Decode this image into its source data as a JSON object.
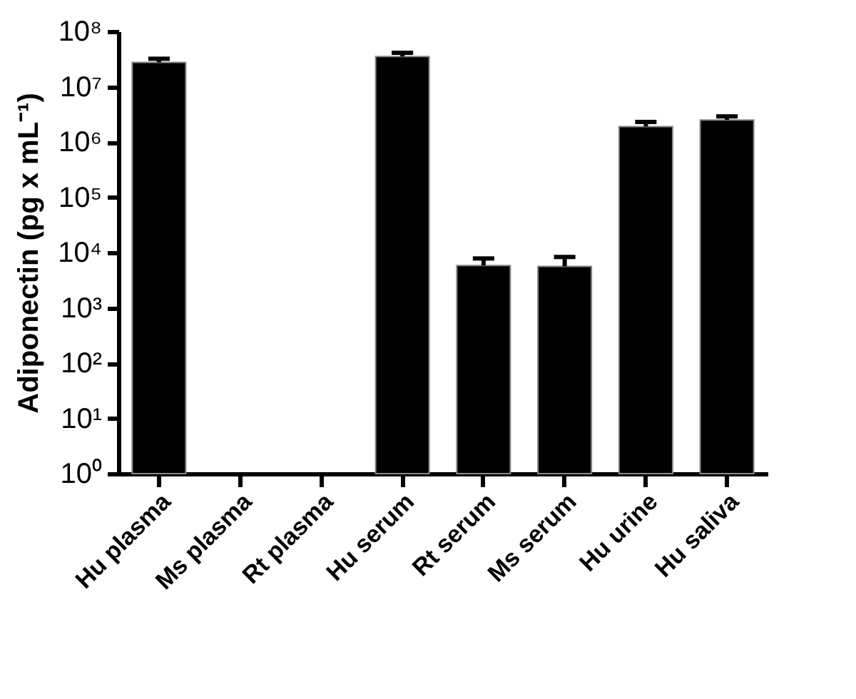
{
  "chart_data": {
    "type": "bar",
    "ylabel": "Adiponectin (pg x mL⁻¹)",
    "categories": [
      "Hu plasma",
      "Ms plasma",
      "Rt plasma",
      "Hu serum",
      "Rt serum",
      "Ms serum",
      "Hu urine",
      "Hu saliva"
    ],
    "values": [
      27500000,
      null,
      null,
      35000000,
      5800,
      5600,
      1900000,
      2500000
    ],
    "errors": [
      [
        27500000,
        32000000
      ],
      null,
      null,
      [
        35000000,
        41000000
      ],
      [
        5800,
        7800
      ],
      [
        5600,
        8300
      ],
      [
        1900000,
        2300000
      ],
      [
        2500000,
        2900000
      ]
    ],
    "color": "#000000",
    "log": true,
    "grid": false,
    "ylim": [
      1,
      100000000
    ],
    "yticks": [
      {
        "value": 1,
        "label": "10⁰"
      },
      {
        "value": 10,
        "label": "10¹"
      },
      {
        "value": 100,
        "label": "10²"
      },
      {
        "value": 1000,
        "label": "10³"
      },
      {
        "value": 10000,
        "label": "10⁴"
      },
      {
        "value": 100000,
        "label": "10⁵"
      },
      {
        "value": 1000000,
        "label": "10⁶"
      },
      {
        "value": 10000000,
        "label": "10⁷"
      },
      {
        "value": 100000000,
        "label": "10⁸"
      }
    ]
  }
}
